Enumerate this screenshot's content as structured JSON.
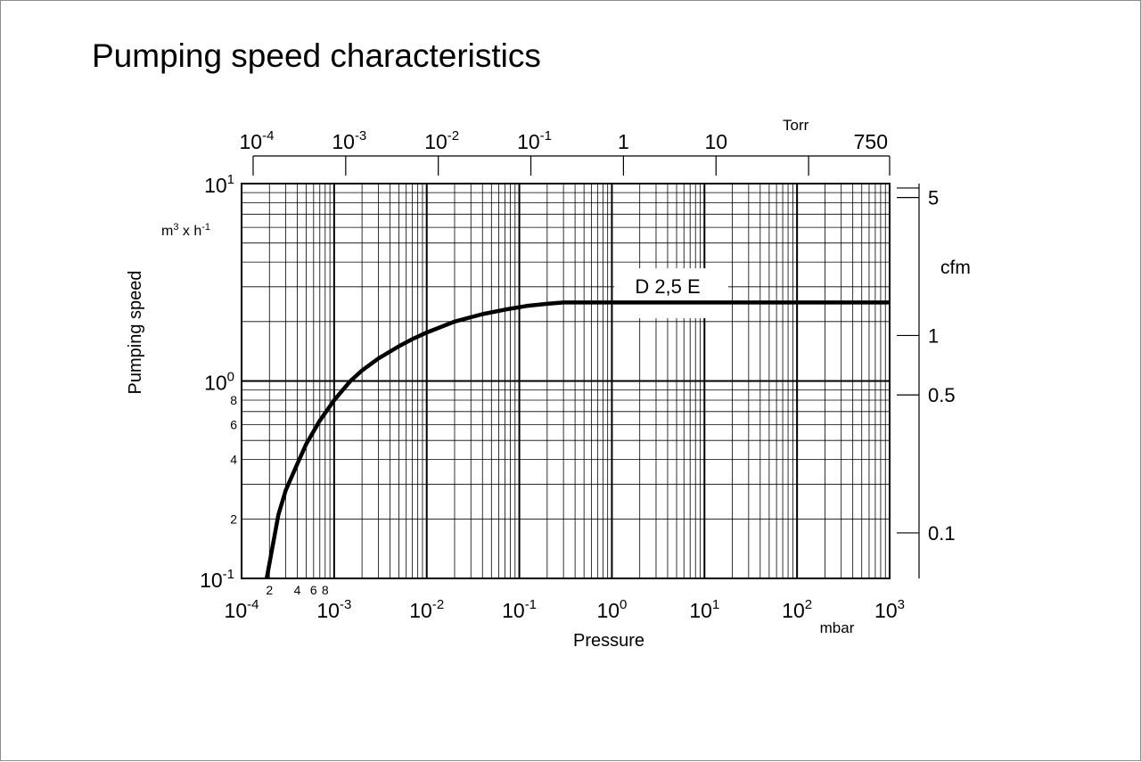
{
  "chart_data": {
    "type": "line",
    "title": "Pumping speed characteristics",
    "xlabel": "Pressure",
    "xunit": "mbar",
    "ylabel": "Pumping speed",
    "yunit": {
      "base": "m",
      "sup": "3",
      "mid": " x h",
      "sup2": "-1"
    },
    "xscale": "log",
    "yscale": "log",
    "xlim": [
      0.0001,
      1000
    ],
    "ylim": [
      0.1,
      10
    ],
    "grid": true,
    "x_major_ticks": [
      {
        "value": 0.0001,
        "base": "10",
        "exp": "-4"
      },
      {
        "value": 0.001,
        "base": "10",
        "exp": "-3"
      },
      {
        "value": 0.01,
        "base": "10",
        "exp": "-2"
      },
      {
        "value": 0.1,
        "base": "10",
        "exp": "-1"
      },
      {
        "value": 1,
        "base": "10",
        "exp": "0"
      },
      {
        "value": 10,
        "base": "10",
        "exp": "1"
      },
      {
        "value": 100,
        "base": "10",
        "exp": "2"
      },
      {
        "value": 1000,
        "base": "10",
        "exp": "3"
      }
    ],
    "x_minor_tick_labels": [
      {
        "value": 0.0002,
        "label": "2"
      },
      {
        "value": 0.0004,
        "label": "4"
      },
      {
        "value": 0.0006,
        "label": "6"
      },
      {
        "value": 0.0008,
        "label": "8"
      }
    ],
    "y_major_ticks": [
      {
        "value": 0.1,
        "base": "10",
        "exp": "-1"
      },
      {
        "value": 1,
        "base": "10",
        "exp": "0"
      },
      {
        "value": 10,
        "base": "10",
        "exp": "1"
      }
    ],
    "y_minor_tick_labels": [
      {
        "value": 0.2,
        "label": "2"
      },
      {
        "value": 0.4,
        "label": "4"
      },
      {
        "value": 0.6,
        "label": "6"
      },
      {
        "value": 0.8,
        "label": "8"
      }
    ],
    "secondary_x_axis": {
      "unit": "Torr",
      "ticks": [
        {
          "value_mbar": 0.0001333,
          "base": "10",
          "exp": "-4"
        },
        {
          "value_mbar": 0.001333,
          "base": "10",
          "exp": "-3"
        },
        {
          "value_mbar": 0.01333,
          "base": "10",
          "exp": "-2"
        },
        {
          "value_mbar": 0.1333,
          "base": "10",
          "exp": "-1"
        },
        {
          "value_mbar": 1.333,
          "base": "1",
          "exp": ""
        },
        {
          "value_mbar": 13.33,
          "base": "10",
          "exp": ""
        },
        {
          "value_mbar": 133.3,
          "base": "",
          "exp": ""
        },
        {
          "value_mbar": 1000,
          "base": "750",
          "exp": ""
        }
      ]
    },
    "secondary_y_axis": {
      "unit": "cfm",
      "ticks": [
        {
          "value_m3h": 8.5,
          "label": "5"
        },
        {
          "value_m3h": 1.7,
          "label": "1"
        },
        {
          "value_m3h": 0.85,
          "label": "0.5"
        },
        {
          "value_m3h": 0.17,
          "label": "0.1"
        }
      ],
      "unlabeled_ticks_m3h": [
        9.5
      ]
    },
    "series": [
      {
        "name": "D 2,5 E",
        "color": "#000000",
        "points": [
          [
            0.000187,
            0.1
          ],
          [
            0.00025,
            0.21
          ],
          [
            0.0003,
            0.28
          ],
          [
            0.0004,
            0.38
          ],
          [
            0.0005,
            0.48
          ],
          [
            0.0007,
            0.63
          ],
          [
            0.001,
            0.8
          ],
          [
            0.0015,
            1.0
          ],
          [
            0.002,
            1.13
          ],
          [
            0.003,
            1.3
          ],
          [
            0.005,
            1.5
          ],
          [
            0.007,
            1.63
          ],
          [
            0.01,
            1.76
          ],
          [
            0.02,
            2.0
          ],
          [
            0.04,
            2.18
          ],
          [
            0.07,
            2.3
          ],
          [
            0.12,
            2.4
          ],
          [
            0.2,
            2.46
          ],
          [
            0.3,
            2.5
          ],
          [
            1,
            2.5
          ],
          [
            10,
            2.5
          ],
          [
            100,
            2.5
          ],
          [
            1000,
            2.5
          ]
        ]
      }
    ]
  }
}
